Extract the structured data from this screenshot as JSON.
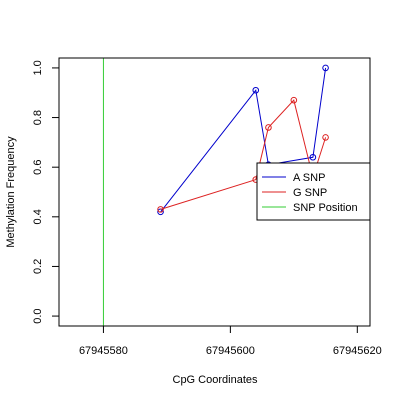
{
  "chart_data": {
    "type": "line",
    "title": "",
    "xlabel": "CpG Coordinates",
    "ylabel": "Methylation Frequency",
    "xlim": [
      67945573,
      67945622
    ],
    "ylim": [
      -0.04,
      1.04
    ],
    "x_ticks": [
      67945580,
      67945600,
      67945620
    ],
    "y_ticks": [
      0.0,
      0.2,
      0.4,
      0.6,
      0.8,
      1.0
    ],
    "x_tick_labels": [
      "67945580",
      "67945600",
      "67945620"
    ],
    "y_tick_labels": [
      "0.0",
      "0.2",
      "0.4",
      "0.6",
      "0.8",
      "1.0"
    ],
    "grid": false,
    "legend_position": "right",
    "series": [
      {
        "name": "A SNP",
        "color": "#0000cc",
        "x": [
          67945589,
          67945604,
          67945606,
          67945613,
          67945615
        ],
        "y": [
          0.42,
          0.91,
          0.61,
          0.64,
          1.0
        ]
      },
      {
        "name": "G SNP",
        "color": "#dd2222",
        "x": [
          67945589,
          67945604,
          67945606,
          67945610,
          67945613,
          67945615
        ],
        "y": [
          0.43,
          0.55,
          0.76,
          0.87,
          0.56,
          0.72
        ]
      }
    ],
    "vlines": [
      {
        "name": "SNP Position",
        "color": "#33cc33",
        "x": 67945580
      }
    ]
  }
}
